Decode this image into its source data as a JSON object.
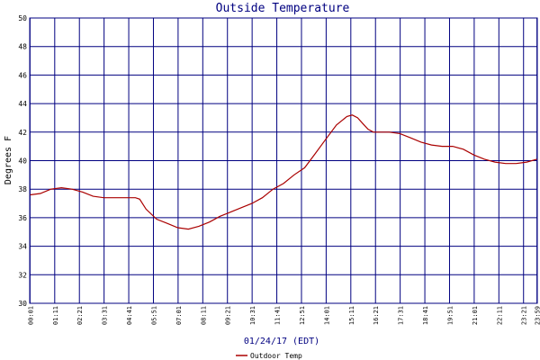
{
  "chart_data": {
    "type": "line",
    "title": "Outside Temperature",
    "xlabel": "01/24/17 (EDT)",
    "ylabel": "Degrees F",
    "ylim": [
      30,
      50
    ],
    "y_ticks": [
      "30",
      "32",
      "34",
      "36",
      "38",
      "40",
      "42",
      "44",
      "46",
      "48",
      "50"
    ],
    "x_ticks": [
      "00:01",
      "01:11",
      "02:21",
      "03:31",
      "04:41",
      "05:51",
      "07:01",
      "08:11",
      "09:21",
      "10:31",
      "11:41",
      "12:51",
      "14:01",
      "15:11",
      "16:21",
      "17:31",
      "18:41",
      "19:51",
      "21:01",
      "22:11",
      "23:21"
    ],
    "last_tick": "23:59",
    "grid": true,
    "legend_position": "bottom-left",
    "colors": {
      "series": "#aa0000",
      "grid": "#000080",
      "title": "#000080"
    },
    "series": [
      {
        "name": "Outdoor Temp",
        "x_hours": [
          0.02,
          0.5,
          1.0,
          1.5,
          2.0,
          2.5,
          3.0,
          3.5,
          4.0,
          4.5,
          5.0,
          5.2,
          5.5,
          6.0,
          6.5,
          7.0,
          7.5,
          8.0,
          8.5,
          9.0,
          9.5,
          10.0,
          10.5,
          11.0,
          11.5,
          12.0,
          12.5,
          13.0,
          13.5,
          14.0,
          14.5,
          15.0,
          15.25,
          15.5,
          15.75,
          16.0,
          16.25,
          16.5,
          17.0,
          17.5,
          18.0,
          18.5,
          19.0,
          19.5,
          20.0,
          20.5,
          21.0,
          21.5,
          22.0,
          22.5,
          23.0,
          23.5,
          23.98
        ],
        "values": [
          37.6,
          37.7,
          38.0,
          38.1,
          38.0,
          37.8,
          37.5,
          37.4,
          37.4,
          37.4,
          37.4,
          37.3,
          36.6,
          35.9,
          35.6,
          35.3,
          35.2,
          35.4,
          35.7,
          36.1,
          36.4,
          36.7,
          37.0,
          37.4,
          38.0,
          38.4,
          39.0,
          39.5,
          40.5,
          41.5,
          42.5,
          43.1,
          43.2,
          43.0,
          42.6,
          42.2,
          42.0,
          42.0,
          42.0,
          41.9,
          41.6,
          41.3,
          41.1,
          41.0,
          41.0,
          40.8,
          40.4,
          40.1,
          39.9,
          39.8,
          39.8,
          39.9,
          40.1
        ]
      }
    ]
  }
}
